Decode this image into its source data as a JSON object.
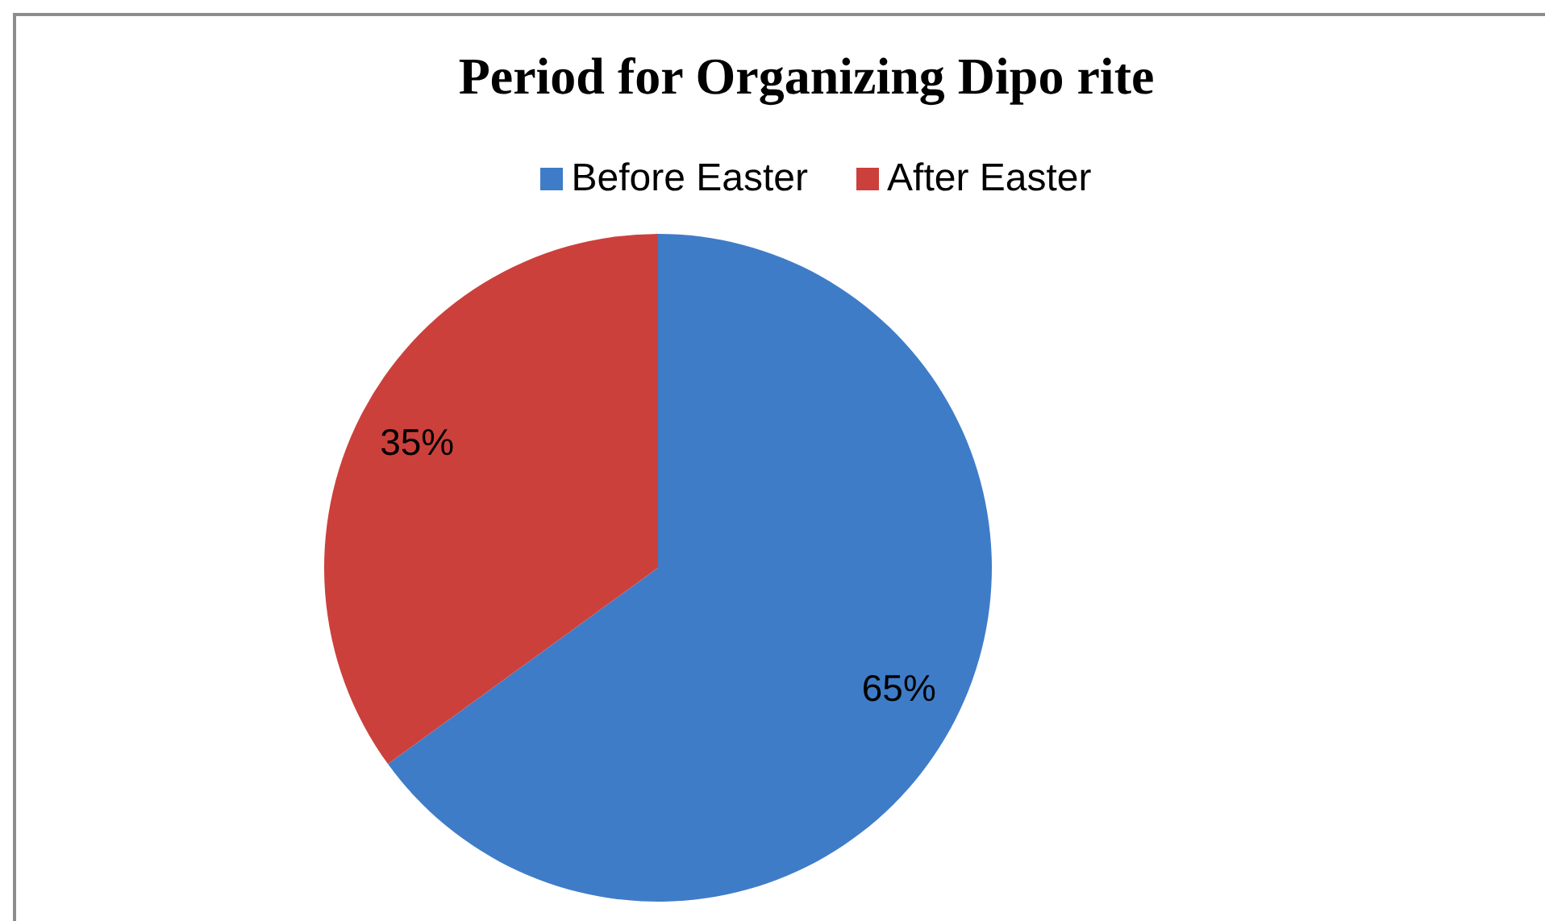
{
  "chart_data": {
    "type": "pie",
    "title": "Period for Organizing Dipo rite",
    "categories": [
      "Before Easter",
      "After Easter"
    ],
    "values": [
      65,
      35
    ],
    "colors": [
      "#3f7cc8",
      "#cc403b"
    ],
    "value_labels": [
      "65%",
      "35%"
    ],
    "legend": "top"
  }
}
